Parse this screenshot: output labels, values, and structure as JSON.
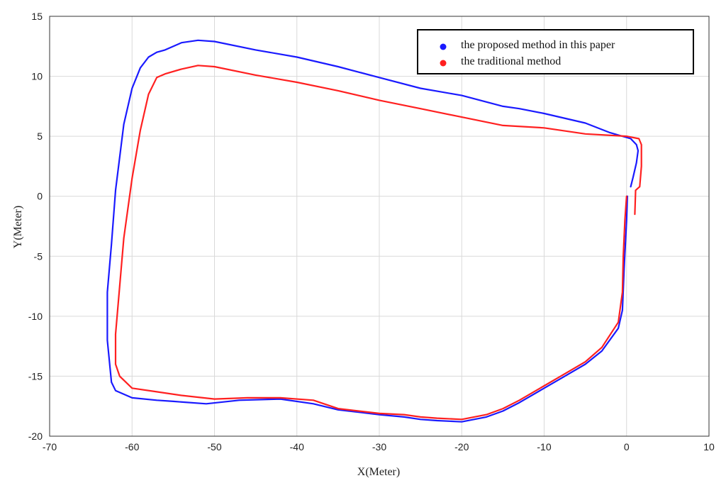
{
  "chart_data": {
    "type": "line",
    "xlabel": "X(Meter)",
    "ylabel": "Y(Meter)",
    "xlim": [
      -70,
      10
    ],
    "ylim": [
      -20,
      15
    ],
    "xticks": [
      -70,
      -60,
      -50,
      -40,
      -30,
      -20,
      -10,
      0,
      10
    ],
    "yticks": [
      -20,
      -15,
      -10,
      -5,
      0,
      5,
      10,
      15
    ],
    "grid": true,
    "legend_position": "top-right",
    "series": [
      {
        "name": "the proposed method in this paper",
        "color": "#1a1aff",
        "points": [
          [
            0.5,
            0.8
          ],
          [
            0.8,
            1.6
          ],
          [
            1.2,
            2.8
          ],
          [
            1.4,
            3.8
          ],
          [
            1.2,
            4.3
          ],
          [
            0.5,
            4.8
          ],
          [
            -2,
            5.3
          ],
          [
            -5,
            6.1
          ],
          [
            -10,
            6.9
          ],
          [
            -13,
            7.3
          ],
          [
            -15,
            7.5
          ],
          [
            -20,
            8.4
          ],
          [
            -25,
            9.0
          ],
          [
            -30,
            9.9
          ],
          [
            -35,
            10.8
          ],
          [
            -40,
            11.6
          ],
          [
            -45,
            12.2
          ],
          [
            -50,
            12.9
          ],
          [
            -52,
            13.0
          ],
          [
            -54,
            12.8
          ],
          [
            -56,
            12.2
          ],
          [
            -57,
            12.0
          ],
          [
            -58,
            11.6
          ],
          [
            -59,
            10.7
          ],
          [
            -60,
            9.0
          ],
          [
            -61,
            6.0
          ],
          [
            -62,
            0.5
          ],
          [
            -62.5,
            -4.0
          ],
          [
            -63,
            -8.0
          ],
          [
            -63,
            -12.0
          ],
          [
            -62.5,
            -15.5
          ],
          [
            -62,
            -16.2
          ],
          [
            -60,
            -16.8
          ],
          [
            -57,
            -17.0
          ],
          [
            -55,
            -17.1
          ],
          [
            -51,
            -17.3
          ],
          [
            -47,
            -17.0
          ],
          [
            -42,
            -16.9
          ],
          [
            -38,
            -17.3
          ],
          [
            -35,
            -17.8
          ],
          [
            -30,
            -18.2
          ],
          [
            -27,
            -18.4
          ],
          [
            -25,
            -18.6
          ],
          [
            -23,
            -18.7
          ],
          [
            -20,
            -18.8
          ],
          [
            -17,
            -18.4
          ],
          [
            -15,
            -17.9
          ],
          [
            -13,
            -17.2
          ],
          [
            -10,
            -16.0
          ],
          [
            -8,
            -15.2
          ],
          [
            -5,
            -14.0
          ],
          [
            -3,
            -12.9
          ],
          [
            -1,
            -11.0
          ],
          [
            -0.5,
            -9.5
          ],
          [
            -0.3,
            -6.0
          ],
          [
            0,
            -2.0
          ],
          [
            0.1,
            0.0
          ]
        ]
      },
      {
        "name": "the traditional method",
        "color": "#ff2020",
        "points": [
          [
            1.0,
            -1.5
          ],
          [
            1.1,
            0.5
          ],
          [
            1.6,
            0.8
          ],
          [
            1.8,
            2.5
          ],
          [
            1.8,
            4.3
          ],
          [
            1.5,
            4.8
          ],
          [
            0,
            5.0
          ],
          [
            -5,
            5.2
          ],
          [
            -10,
            5.7
          ],
          [
            -15,
            5.9
          ],
          [
            -20,
            6.6
          ],
          [
            -25,
            7.3
          ],
          [
            -30,
            8.0
          ],
          [
            -35,
            8.8
          ],
          [
            -40,
            9.5
          ],
          [
            -45,
            10.1
          ],
          [
            -50,
            10.8
          ],
          [
            -52,
            10.9
          ],
          [
            -54,
            10.6
          ],
          [
            -56,
            10.2
          ],
          [
            -57,
            9.9
          ],
          [
            -58,
            8.5
          ],
          [
            -59,
            5.5
          ],
          [
            -60,
            1.5
          ],
          [
            -61,
            -3.5
          ],
          [
            -61.5,
            -7.5
          ],
          [
            -62,
            -11.5
          ],
          [
            -62,
            -14.0
          ],
          [
            -61.5,
            -15.0
          ],
          [
            -60,
            -16.0
          ],
          [
            -57,
            -16.3
          ],
          [
            -54,
            -16.6
          ],
          [
            -50,
            -16.9
          ],
          [
            -46,
            -16.8
          ],
          [
            -42,
            -16.8
          ],
          [
            -38,
            -17.0
          ],
          [
            -35,
            -17.7
          ],
          [
            -30,
            -18.1
          ],
          [
            -27,
            -18.2
          ],
          [
            -25,
            -18.4
          ],
          [
            -23,
            -18.5
          ],
          [
            -20,
            -18.6
          ],
          [
            -17,
            -18.2
          ],
          [
            -15,
            -17.7
          ],
          [
            -13,
            -17.0
          ],
          [
            -10,
            -15.8
          ],
          [
            -8,
            -15.0
          ],
          [
            -5,
            -13.8
          ],
          [
            -3,
            -12.6
          ],
          [
            -1,
            -10.5
          ],
          [
            -0.5,
            -8.0
          ],
          [
            -0.4,
            -5.0
          ],
          [
            -0.2,
            -2.0
          ],
          [
            0,
            0.0
          ]
        ]
      }
    ]
  }
}
